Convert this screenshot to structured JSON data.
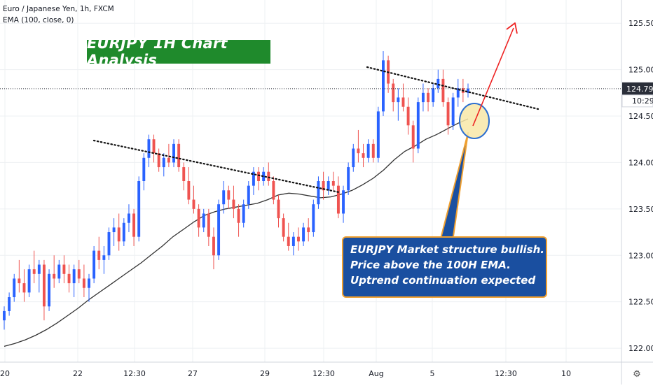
{
  "header": {
    "symbol_line": "Euro / Japanese Yen, 1h, FXCM",
    "indicator_line": "EMA (100, close, 0)"
  },
  "annotation": {
    "title": "EURJPY 1H Chart Analysis",
    "note_lines": [
      "EURJPY Market structure bullish.",
      "Price above the 100H EMA.",
      "Uptrend continuation expected"
    ]
  },
  "colors": {
    "up_candle": "#2962ff",
    "down_candle": "#ef5350",
    "ema_line": "#333333",
    "title_bg": "#1f8a2c",
    "note_bg": "#1a4fa0",
    "arrow": "#ee2222",
    "price_tag_bg": "#2a2e39"
  },
  "chart_data": {
    "type": "candlestick",
    "ylim": [
      121.85,
      125.75
    ],
    "y_ticks": [
      "122.000",
      "122.500",
      "123.000",
      "123.500",
      "124.000",
      "124.500",
      "125.000",
      "125.500"
    ],
    "y_tick_values": [
      122.0,
      122.5,
      123.0,
      123.5,
      124.0,
      124.5,
      125.0,
      125.5
    ],
    "x_tick_labels": [
      "20",
      "22",
      "12:30",
      "27",
      "29",
      "12:30",
      "Aug",
      "5",
      "12:30",
      "10"
    ],
    "last_price": "124.795",
    "countdown": "10:29",
    "candles": [
      [
        122.3,
        122.45,
        122.2,
        122.4
      ],
      [
        122.4,
        122.6,
        122.35,
        122.55
      ],
      [
        122.55,
        122.8,
        122.5,
        122.75
      ],
      [
        122.75,
        122.95,
        122.6,
        122.7
      ],
      [
        122.7,
        122.85,
        122.5,
        122.6
      ],
      [
        122.6,
        122.9,
        122.55,
        122.85
      ],
      [
        122.85,
        123.05,
        122.7,
        122.8
      ],
      [
        122.8,
        122.95,
        122.6,
        122.9
      ],
      [
        122.9,
        122.95,
        122.3,
        122.45
      ],
      [
        122.45,
        122.85,
        122.4,
        122.8
      ],
      [
        122.8,
        123.0,
        122.65,
        122.75
      ],
      [
        122.75,
        122.95,
        122.7,
        122.9
      ],
      [
        122.9,
        123.0,
        122.7,
        122.8
      ],
      [
        122.8,
        122.9,
        122.6,
        122.7
      ],
      [
        122.7,
        122.9,
        122.55,
        122.85
      ],
      [
        122.85,
        122.95,
        122.7,
        122.75
      ],
      [
        122.75,
        122.9,
        122.55,
        122.65
      ],
      [
        122.65,
        122.8,
        122.5,
        122.75
      ],
      [
        122.75,
        123.1,
        122.7,
        123.05
      ],
      [
        123.05,
        123.2,
        122.85,
        122.95
      ],
      [
        122.95,
        123.1,
        122.8,
        123.0
      ],
      [
        123.0,
        123.3,
        122.95,
        123.25
      ],
      [
        123.25,
        123.4,
        123.1,
        123.3
      ],
      [
        123.3,
        123.45,
        123.05,
        123.15
      ],
      [
        123.15,
        123.4,
        123.1,
        123.35
      ],
      [
        123.35,
        123.55,
        123.25,
        123.45
      ],
      [
        123.45,
        123.5,
        123.1,
        123.2
      ],
      [
        123.2,
        123.85,
        123.15,
        123.8
      ],
      [
        123.8,
        124.1,
        123.7,
        124.05
      ],
      [
        124.05,
        124.3,
        123.95,
        124.25
      ],
      [
        124.25,
        124.3,
        124.0,
        124.1
      ],
      [
        124.1,
        124.15,
        123.9,
        123.95
      ],
      [
        123.95,
        124.1,
        123.85,
        124.05
      ],
      [
        124.05,
        124.2,
        123.95,
        124.0
      ],
      [
        124.0,
        124.25,
        123.95,
        124.2
      ],
      [
        124.2,
        124.25,
        123.9,
        123.95
      ],
      [
        123.95,
        124.0,
        123.7,
        123.8
      ],
      [
        123.8,
        123.95,
        123.55,
        123.6
      ],
      [
        123.6,
        123.75,
        123.45,
        123.5
      ],
      [
        123.5,
        123.55,
        123.2,
        123.3
      ],
      [
        123.3,
        123.5,
        123.25,
        123.45
      ],
      [
        123.45,
        123.5,
        123.1,
        123.2
      ],
      [
        123.2,
        123.3,
        122.85,
        123.0
      ],
      [
        123.0,
        123.6,
        122.95,
        123.55
      ],
      [
        123.55,
        123.8,
        123.45,
        123.7
      ],
      [
        123.7,
        123.75,
        123.5,
        123.6
      ],
      [
        123.6,
        123.75,
        123.4,
        123.5
      ],
      [
        123.5,
        123.55,
        123.2,
        123.35
      ],
      [
        123.35,
        123.6,
        123.3,
        123.55
      ],
      [
        123.55,
        123.8,
        123.5,
        123.75
      ],
      [
        123.75,
        123.95,
        123.65,
        123.9
      ],
      [
        123.9,
        123.95,
        123.7,
        123.8
      ],
      [
        123.8,
        123.95,
        123.75,
        123.9
      ],
      [
        123.9,
        124.0,
        123.75,
        123.8
      ],
      [
        123.8,
        123.85,
        123.55,
        123.6
      ],
      [
        123.6,
        123.65,
        123.3,
        123.4
      ],
      [
        123.4,
        123.45,
        123.15,
        123.2
      ],
      [
        123.2,
        123.35,
        123.05,
        123.1
      ],
      [
        123.1,
        123.25,
        123.0,
        123.2
      ],
      [
        123.2,
        123.3,
        123.05,
        123.15
      ],
      [
        123.15,
        123.35,
        123.1,
        123.3
      ],
      [
        123.3,
        123.4,
        123.15,
        123.25
      ],
      [
        123.25,
        123.6,
        123.2,
        123.55
      ],
      [
        123.55,
        123.85,
        123.5,
        123.8
      ],
      [
        123.8,
        123.9,
        123.6,
        123.7
      ],
      [
        123.7,
        123.85,
        123.65,
        123.8
      ],
      [
        123.8,
        123.9,
        123.7,
        123.75
      ],
      [
        123.75,
        123.85,
        123.4,
        123.45
      ],
      [
        123.45,
        123.75,
        123.35,
        123.7
      ],
      [
        123.7,
        124.0,
        123.65,
        123.95
      ],
      [
        123.95,
        124.2,
        123.9,
        124.15
      ],
      [
        124.15,
        124.35,
        124.0,
        124.1
      ],
      [
        124.1,
        124.2,
        123.95,
        124.05
      ],
      [
        124.05,
        124.25,
        124.0,
        124.2
      ],
      [
        124.2,
        124.25,
        124.0,
        124.05
      ],
      [
        124.05,
        124.6,
        124.0,
        124.55
      ],
      [
        124.55,
        125.2,
        124.5,
        125.1
      ],
      [
        125.1,
        125.15,
        124.75,
        124.85
      ],
      [
        124.85,
        124.9,
        124.55,
        124.65
      ],
      [
        124.65,
        124.8,
        124.45,
        124.7
      ],
      [
        124.7,
        124.85,
        124.55,
        124.6
      ],
      [
        124.6,
        124.7,
        124.3,
        124.4
      ],
      [
        124.4,
        124.45,
        124.0,
        124.15
      ],
      [
        124.15,
        124.7,
        124.1,
        124.65
      ],
      [
        124.65,
        124.85,
        124.55,
        124.75
      ],
      [
        124.75,
        124.8,
        124.55,
        124.65
      ],
      [
        124.65,
        124.85,
        124.6,
        124.8
      ],
      [
        124.8,
        125.0,
        124.75,
        124.9
      ],
      [
        124.9,
        125.0,
        124.6,
        124.65
      ],
      [
        124.65,
        124.7,
        124.3,
        124.4
      ],
      [
        124.4,
        124.75,
        124.35,
        124.7
      ],
      [
        124.7,
        124.9,
        124.6,
        124.8
      ],
      [
        124.8,
        124.9,
        124.65,
        124.75
      ],
      [
        124.75,
        124.85,
        124.7,
        124.795
      ]
    ],
    "ema": [
      122.02,
      122.05,
      122.09,
      122.14,
      122.2,
      122.27,
      122.35,
      122.43,
      122.52,
      122.6,
      122.68,
      122.76,
      122.84,
      122.92,
      123.01,
      123.1,
      123.2,
      123.28,
      123.36,
      123.43,
      123.47,
      123.5,
      123.52,
      123.54,
      123.56,
      123.6,
      123.65,
      123.67,
      123.66,
      123.64,
      123.62,
      123.63,
      123.66,
      123.7,
      123.76,
      123.83,
      123.92,
      124.03,
      124.12,
      124.18,
      124.25,
      124.3,
      124.36,
      124.42,
      124.47
    ],
    "trendlines": [
      {
        "points": [
          [
            1,
            124.3
          ],
          [
            2,
            124.2
          ],
          [
            3,
            123.98
          ],
          [
            4,
            123.76
          ]
        ]
      },
      {
        "points": [
          [
            5,
            125.18
          ],
          [
            6,
            124.98
          ],
          [
            7,
            124.72
          ]
        ]
      }
    ]
  }
}
